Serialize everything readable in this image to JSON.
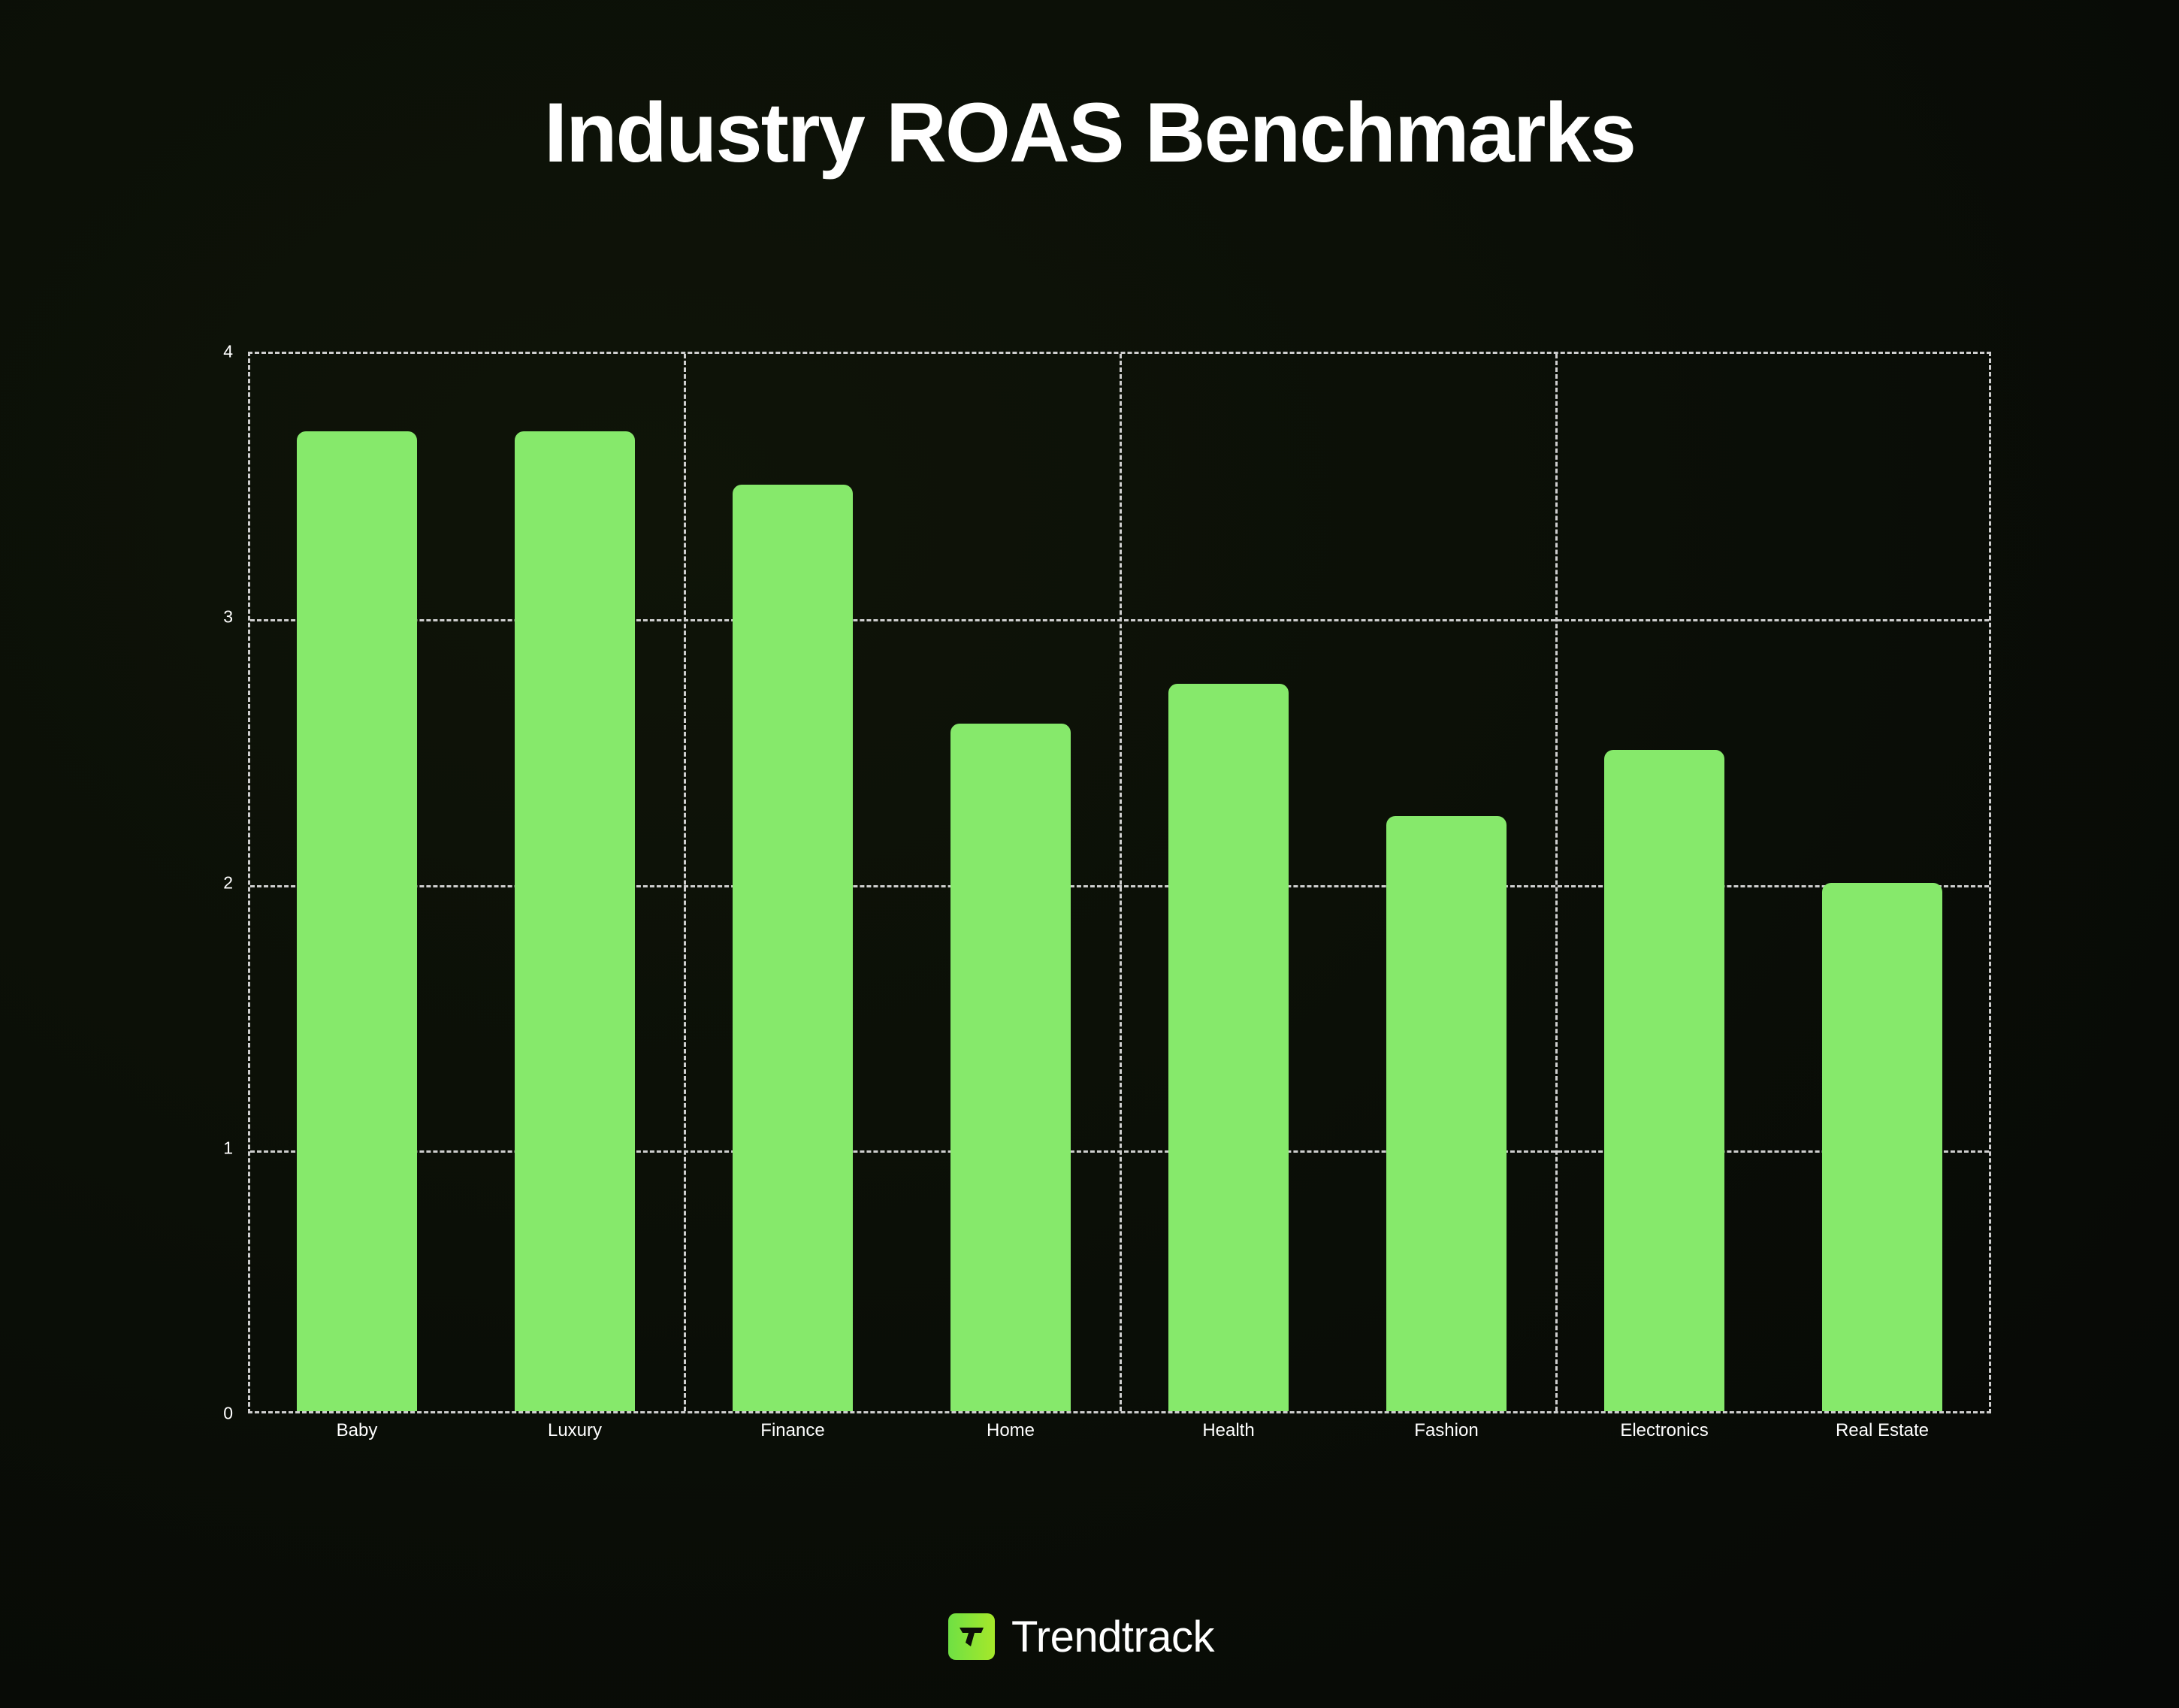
{
  "title": "Industry ROAS Benchmarks",
  "brand": {
    "name": "Trendtrack",
    "logo_icon": "trendtrack-t-logo-icon",
    "logo_color": "#7ee046"
  },
  "colors": {
    "bar": "#86e96b",
    "grid": "#cfcfcf",
    "background": "#0b0f07",
    "text": "#ffffff"
  },
  "chart_data": {
    "type": "bar",
    "title": "Industry ROAS Benchmarks",
    "xlabel": "",
    "ylabel": "",
    "categories": [
      "Baby",
      "Luxury",
      "Finance",
      "Home",
      "Health",
      "Fashion",
      "Electronics",
      "Real Estate"
    ],
    "values": [
      3.7,
      3.7,
      3.5,
      2.6,
      2.75,
      2.25,
      2.5,
      2.0
    ],
    "ylim": [
      0,
      4
    ],
    "yticks": [
      "0",
      "1",
      "2",
      "3",
      "4"
    ],
    "grid": true,
    "grid_style": "dashed",
    "legend": null
  }
}
